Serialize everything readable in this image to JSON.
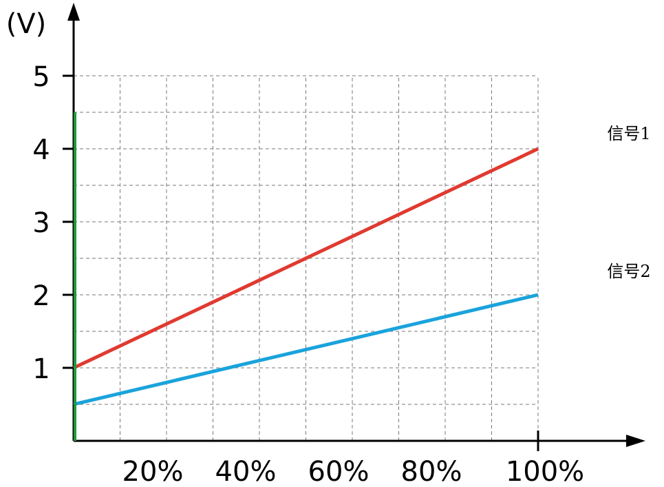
{
  "chart_data": {
    "type": "line",
    "ylabel": "(V)",
    "xlabel": "",
    "x_unit": "%",
    "x_ticks": [
      {
        "value": 20,
        "label": "20%"
      },
      {
        "value": 40,
        "label": "40%"
      },
      {
        "value": 60,
        "label": "60%"
      },
      {
        "value": 80,
        "label": "80%"
      },
      {
        "value": 100,
        "label": "100%"
      }
    ],
    "y_ticks": [
      {
        "value": 1,
        "label": "1"
      },
      {
        "value": 2,
        "label": "2"
      },
      {
        "value": 3,
        "label": "3"
      },
      {
        "value": 4,
        "label": "4"
      },
      {
        "value": 5,
        "label": "5"
      }
    ],
    "xlim": [
      0,
      100
    ],
    "ylim": [
      0,
      5
    ],
    "grid": true,
    "series": [
      {
        "name": "信号1",
        "color": "#e03a30",
        "x": [
          0,
          100
        ],
        "y": [
          1.0,
          4.0
        ]
      },
      {
        "name": "信号2",
        "color": "#1aa3dc",
        "x": [
          0,
          100
        ],
        "y": [
          0.5,
          2.0
        ]
      }
    ],
    "marker": {
      "color": "#1e9a3c",
      "x": 0,
      "y": [
        0,
        4.5
      ]
    }
  }
}
